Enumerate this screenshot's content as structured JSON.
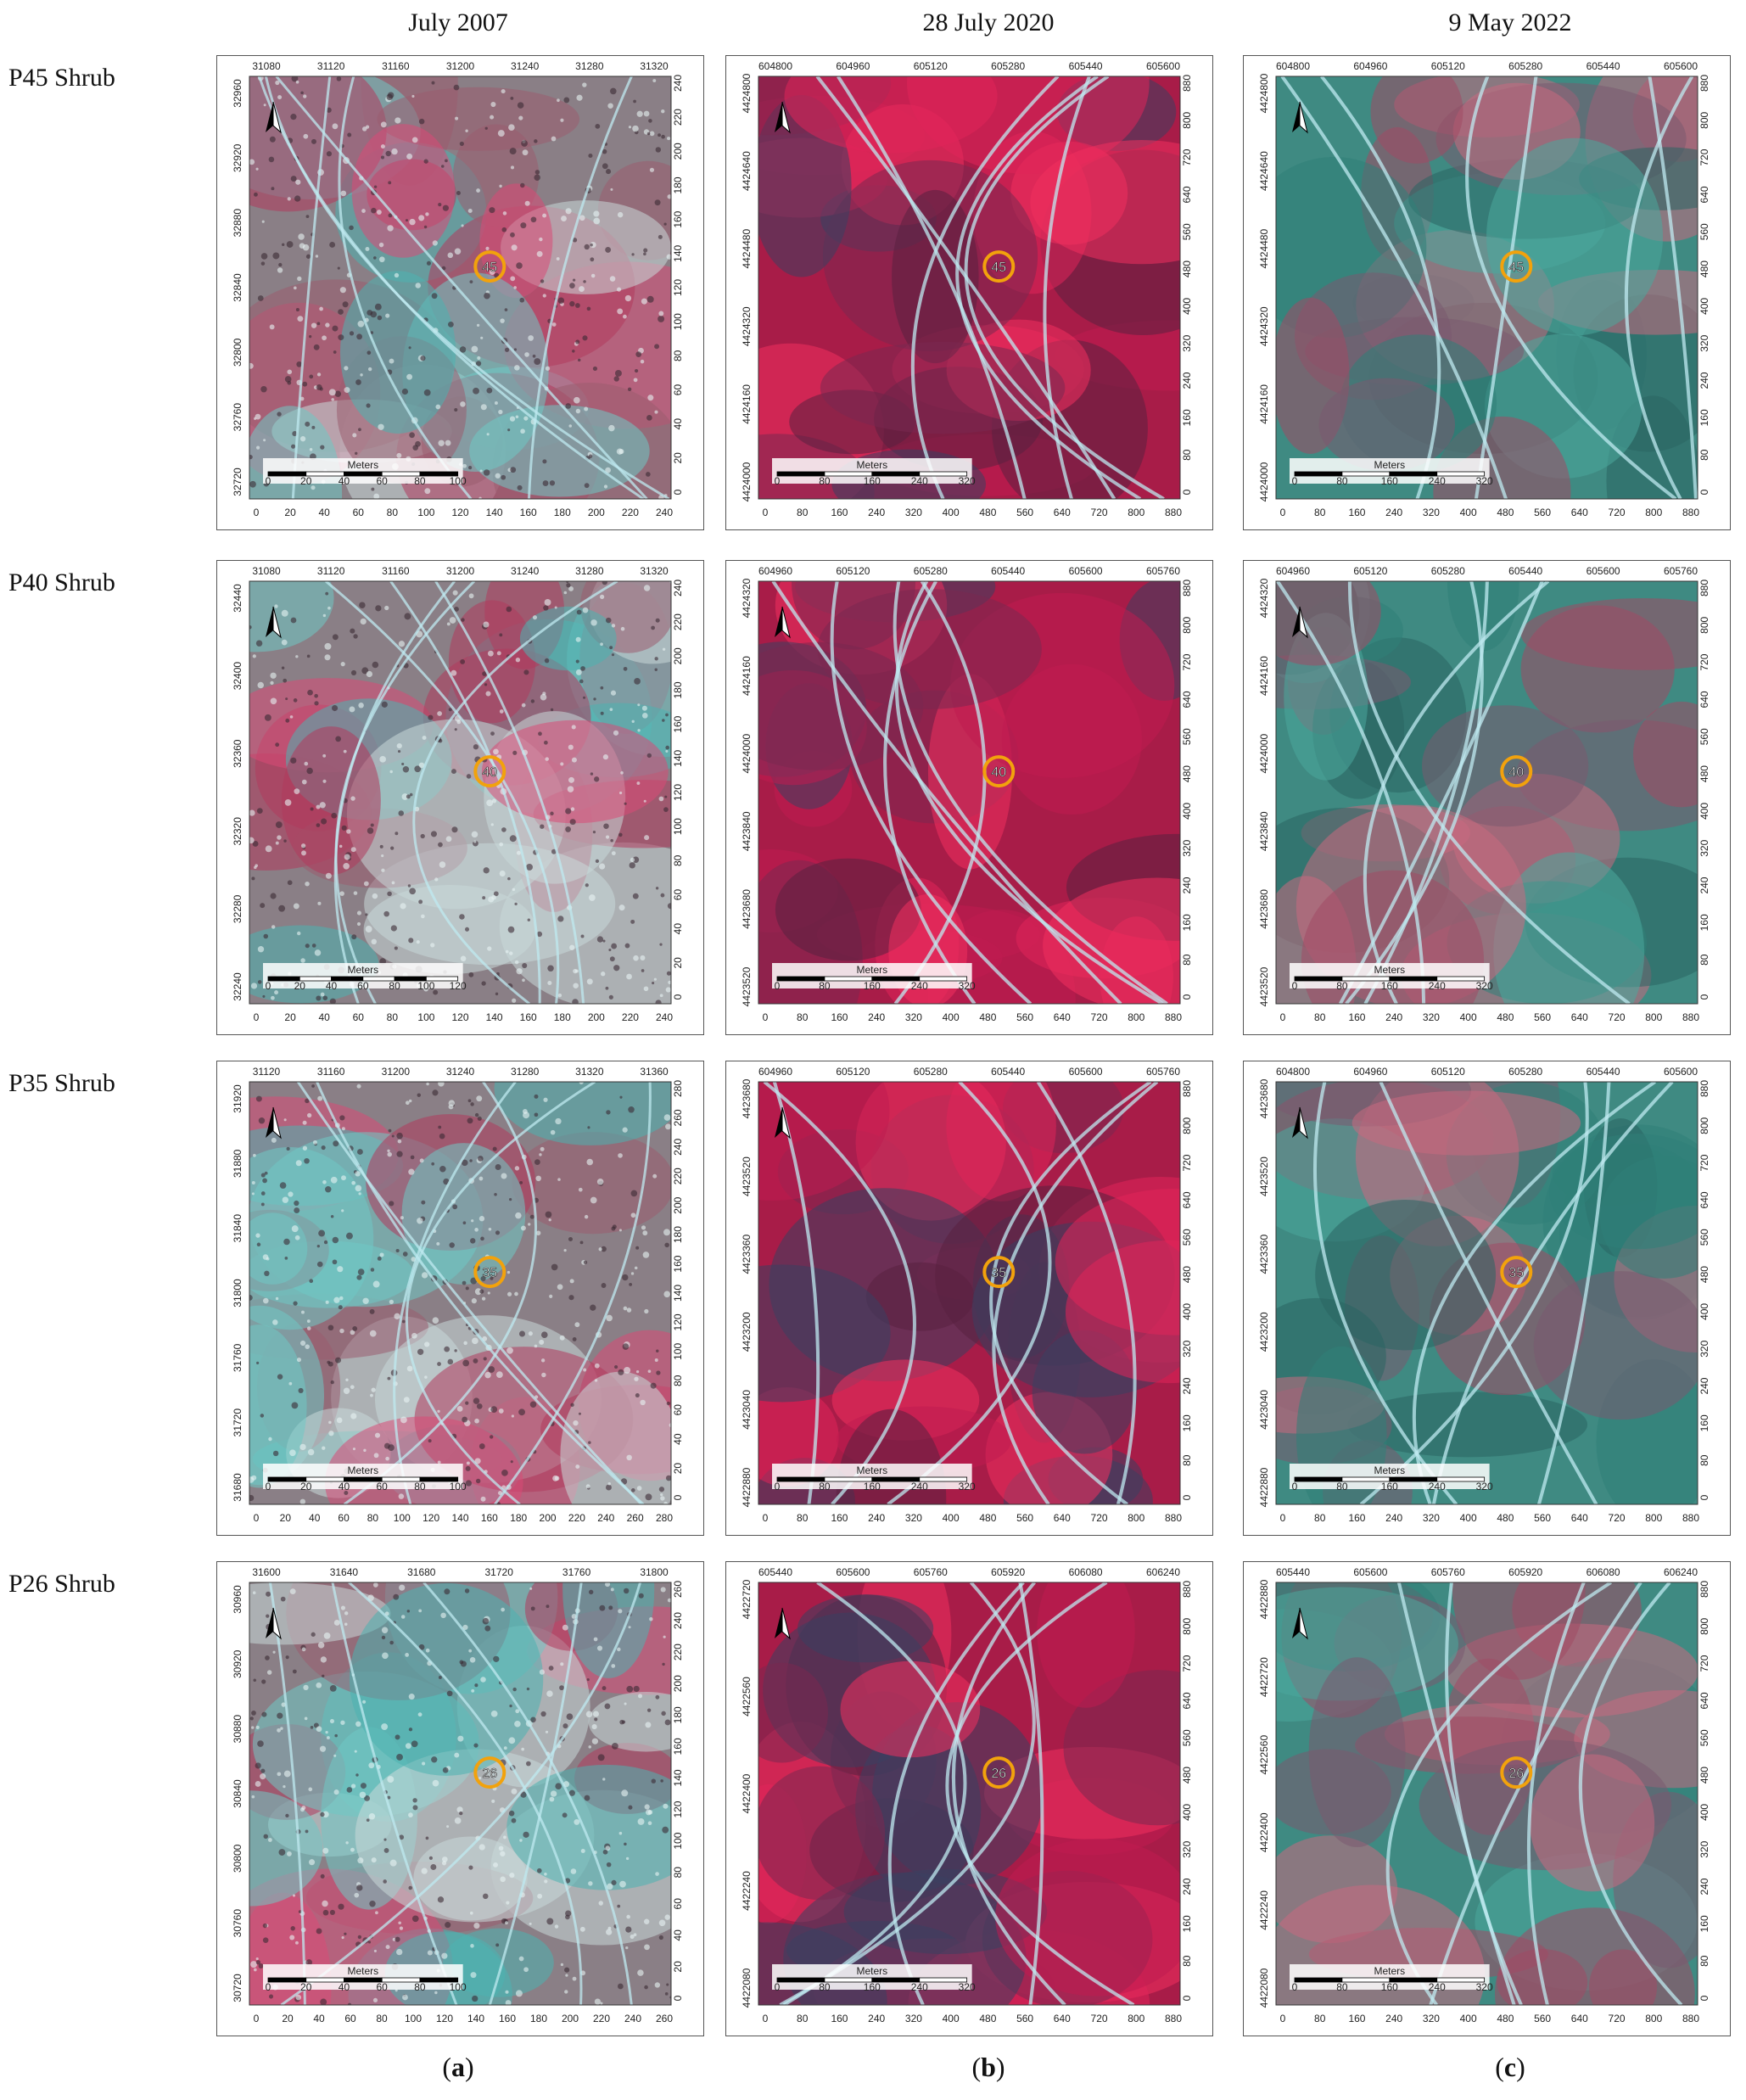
{
  "columns": [
    {
      "header": "July 2007",
      "sub_label": "a"
    },
    {
      "header": "28 July 2020",
      "sub_label": "b"
    },
    {
      "header": "9 May 2022",
      "sub_label": "c"
    }
  ],
  "rows": [
    {
      "label": "P45 Shrub",
      "marker": "45",
      "panels": [
        {
          "top_ticks": [
            "31080",
            "31120",
            "31160",
            "31200",
            "31240",
            "31280",
            "31320"
          ],
          "left_ticks": [
            "32960",
            "32920",
            "32880",
            "32840",
            "32800",
            "32760",
            "32720"
          ],
          "right_ticks": [
            "240",
            "220",
            "200",
            "180",
            "160",
            "140",
            "120",
            "100",
            "80",
            "60",
            "40",
            "20",
            "0"
          ],
          "bottom_ticks": [
            "0",
            "20",
            "40",
            "60",
            "80",
            "100",
            "120",
            "140",
            "160",
            "180",
            "200",
            "220",
            "240"
          ],
          "scale_ticks": [
            "0",
            "20",
            "40",
            "60",
            "80",
            "100"
          ]
        },
        {
          "top_ticks": [
            "604800",
            "604960",
            "605120",
            "605280",
            "605440",
            "605600"
          ],
          "left_ticks": [
            "4424800",
            "4424640",
            "4424480",
            "4424320",
            "4424160",
            "4424000"
          ],
          "right_ticks": [
            "880",
            "800",
            "720",
            "640",
            "560",
            "480",
            "400",
            "320",
            "240",
            "160",
            "80",
            "0"
          ],
          "bottom_ticks": [
            "0",
            "80",
            "160",
            "240",
            "320",
            "400",
            "480",
            "560",
            "640",
            "720",
            "800",
            "880"
          ],
          "scale_ticks": [
            "0",
            "80",
            "160",
            "240",
            "320"
          ]
        },
        {
          "top_ticks": [
            "604800",
            "604960",
            "605120",
            "605280",
            "605440",
            "605600"
          ],
          "left_ticks": [
            "4424800",
            "4424640",
            "4424480",
            "4424320",
            "4424160",
            "4424000"
          ],
          "right_ticks": [
            "880",
            "800",
            "720",
            "640",
            "560",
            "480",
            "400",
            "320",
            "240",
            "160",
            "80",
            "0"
          ],
          "bottom_ticks": [
            "0",
            "80",
            "160",
            "240",
            "320",
            "400",
            "480",
            "560",
            "640",
            "720",
            "800",
            "880"
          ],
          "scale_ticks": [
            "0",
            "80",
            "160",
            "240",
            "320"
          ]
        }
      ]
    },
    {
      "label": "P40 Shrub",
      "marker": "40",
      "panels": [
        {
          "top_ticks": [
            "31080",
            "31120",
            "31160",
            "31200",
            "31240",
            "31280",
            "31320"
          ],
          "left_ticks": [
            "32440",
            "32400",
            "32360",
            "32320",
            "32280",
            "32240"
          ],
          "right_ticks": [
            "240",
            "220",
            "200",
            "180",
            "160",
            "140",
            "120",
            "100",
            "80",
            "60",
            "40",
            "20",
            "0"
          ],
          "bottom_ticks": [
            "0",
            "20",
            "40",
            "60",
            "80",
            "100",
            "120",
            "140",
            "160",
            "180",
            "200",
            "220",
            "240"
          ],
          "scale_ticks": [
            "0",
            "20",
            "40",
            "60",
            "80",
            "100",
            "120"
          ]
        },
        {
          "top_ticks": [
            "604960",
            "605120",
            "605280",
            "605440",
            "605600",
            "605760"
          ],
          "left_ticks": [
            "4424320",
            "4424160",
            "4424000",
            "4423840",
            "4423680",
            "4423520"
          ],
          "right_ticks": [
            "880",
            "800",
            "720",
            "640",
            "560",
            "480",
            "400",
            "320",
            "240",
            "160",
            "80",
            "0"
          ],
          "bottom_ticks": [
            "0",
            "80",
            "160",
            "240",
            "320",
            "400",
            "480",
            "560",
            "640",
            "720",
            "800",
            "880"
          ],
          "scale_ticks": [
            "0",
            "80",
            "160",
            "240",
            "320"
          ]
        },
        {
          "top_ticks": [
            "604960",
            "605120",
            "605280",
            "605440",
            "605600",
            "605760"
          ],
          "left_ticks": [
            "4424320",
            "4424160",
            "4424000",
            "4423840",
            "4423680",
            "4423520"
          ],
          "right_ticks": [
            "880",
            "800",
            "720",
            "640",
            "560",
            "480",
            "400",
            "320",
            "240",
            "160",
            "80",
            "0"
          ],
          "bottom_ticks": [
            "0",
            "80",
            "160",
            "240",
            "320",
            "400",
            "480",
            "560",
            "640",
            "720",
            "800",
            "880"
          ],
          "scale_ticks": [
            "0",
            "80",
            "160",
            "240",
            "320"
          ]
        }
      ]
    },
    {
      "label": "P35 Shrub",
      "marker": "35",
      "panels": [
        {
          "top_ticks": [
            "31120",
            "31160",
            "31200",
            "31240",
            "31280",
            "31320",
            "31360"
          ],
          "left_ticks": [
            "31920",
            "31880",
            "31840",
            "31800",
            "31760",
            "31720",
            "31680"
          ],
          "right_ticks": [
            "280",
            "260",
            "240",
            "220",
            "200",
            "180",
            "160",
            "140",
            "120",
            "100",
            "80",
            "60",
            "40",
            "20",
            "0"
          ],
          "bottom_ticks": [
            "0",
            "20",
            "40",
            "60",
            "80",
            "100",
            "120",
            "140",
            "160",
            "180",
            "200",
            "220",
            "240",
            "260",
            "280"
          ],
          "scale_ticks": [
            "0",
            "20",
            "40",
            "60",
            "80",
            "100"
          ]
        },
        {
          "top_ticks": [
            "604960",
            "605120",
            "605280",
            "605440",
            "605600",
            "605760"
          ],
          "left_ticks": [
            "4423680",
            "4423520",
            "4423360",
            "4423200",
            "4423040",
            "4422880"
          ],
          "right_ticks": [
            "880",
            "800",
            "720",
            "640",
            "560",
            "480",
            "400",
            "320",
            "240",
            "160",
            "80",
            "0"
          ],
          "bottom_ticks": [
            "0",
            "80",
            "160",
            "240",
            "320",
            "400",
            "480",
            "560",
            "640",
            "720",
            "800",
            "880"
          ],
          "scale_ticks": [
            "0",
            "80",
            "160",
            "240",
            "320"
          ]
        },
        {
          "top_ticks": [
            "604800",
            "604960",
            "605120",
            "605280",
            "605440",
            "605600"
          ],
          "left_ticks": [
            "4423680",
            "4423520",
            "4423360",
            "4423200",
            "4423040",
            "4422880"
          ],
          "right_ticks": [
            "880",
            "800",
            "720",
            "640",
            "560",
            "480",
            "400",
            "320",
            "240",
            "160",
            "80",
            "0"
          ],
          "bottom_ticks": [
            "0",
            "80",
            "160",
            "240",
            "320",
            "400",
            "480",
            "560",
            "640",
            "720",
            "800",
            "880"
          ],
          "scale_ticks": [
            "0",
            "80",
            "160",
            "240",
            "320"
          ]
        }
      ]
    },
    {
      "label": "P26 Shrub",
      "marker": "26",
      "panels": [
        {
          "top_ticks": [
            "31600",
            "31640",
            "31680",
            "31720",
            "31760",
            "31800"
          ],
          "left_ticks": [
            "30960",
            "30920",
            "30880",
            "30840",
            "30800",
            "30760",
            "30720"
          ],
          "right_ticks": [
            "260",
            "240",
            "220",
            "200",
            "180",
            "160",
            "140",
            "120",
            "100",
            "80",
            "60",
            "40",
            "20",
            "0"
          ],
          "bottom_ticks": [
            "0",
            "20",
            "40",
            "60",
            "80",
            "100",
            "120",
            "140",
            "160",
            "180",
            "200",
            "220",
            "240",
            "260"
          ],
          "scale_ticks": [
            "0",
            "20",
            "40",
            "60",
            "80",
            "100"
          ]
        },
        {
          "top_ticks": [
            "605440",
            "605600",
            "605760",
            "605920",
            "606080",
            "606240"
          ],
          "left_ticks": [
            "4422720",
            "4422560",
            "4422400",
            "4422240",
            "4422080"
          ],
          "right_ticks": [
            "880",
            "800",
            "720",
            "640",
            "560",
            "480",
            "400",
            "320",
            "240",
            "160",
            "80",
            "0"
          ],
          "bottom_ticks": [
            "0",
            "80",
            "160",
            "240",
            "320",
            "400",
            "480",
            "560",
            "640",
            "720",
            "800",
            "880"
          ],
          "scale_ticks": [
            "0",
            "80",
            "160",
            "240",
            "320"
          ]
        },
        {
          "top_ticks": [
            "605440",
            "605600",
            "605760",
            "605920",
            "606080",
            "606240"
          ],
          "left_ticks": [
            "4422880",
            "4422720",
            "4422560",
            "4422400",
            "4422240",
            "4422080"
          ],
          "right_ticks": [
            "880",
            "800",
            "720",
            "640",
            "560",
            "480",
            "400",
            "320",
            "240",
            "160",
            "80",
            "0"
          ],
          "bottom_ticks": [
            "0",
            "80",
            "160",
            "240",
            "320",
            "400",
            "480",
            "560",
            "640",
            "720",
            "800",
            "880"
          ],
          "scale_ticks": [
            "0",
            "80",
            "160",
            "240",
            "320"
          ]
        }
      ]
    }
  ],
  "scale_bar_title": "Meters",
  "north_label": "N",
  "colors": {
    "vegetation": "#e0245a",
    "bare_soil": "#5fd0cf",
    "road": "#bfeaf0",
    "marker": "#f2a20c"
  }
}
